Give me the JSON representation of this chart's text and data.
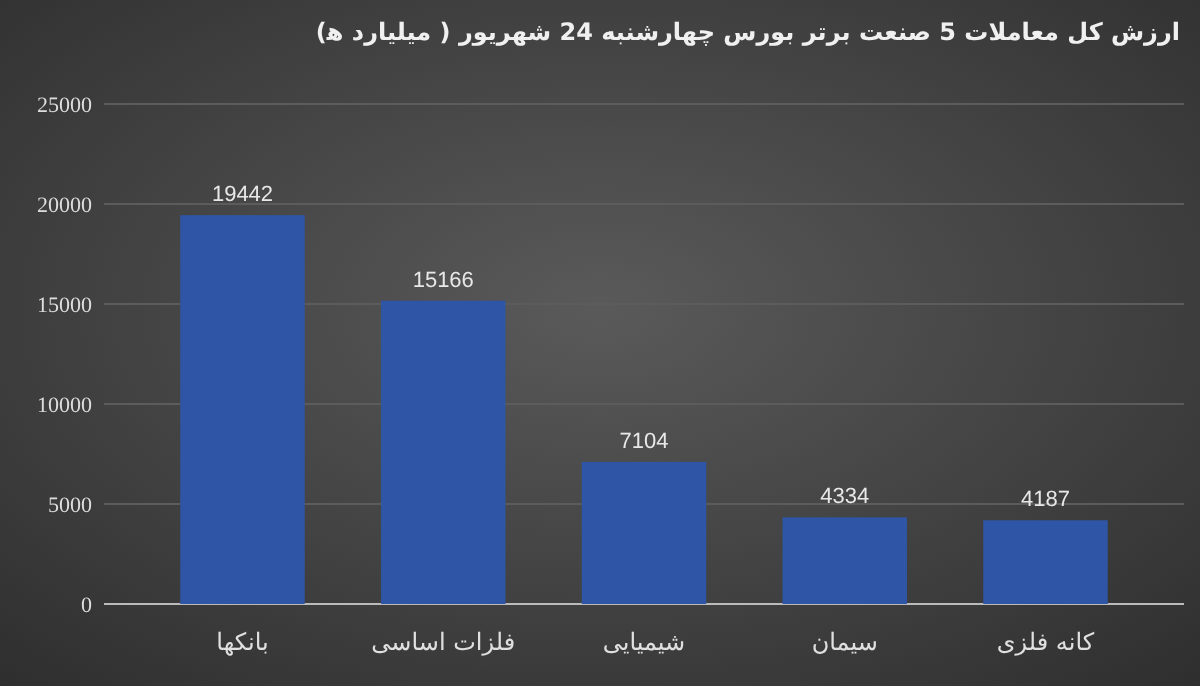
{
  "chart_data": {
    "type": "bar",
    "title": "ارزش کل معاملات 5 صنعت برتر بورس چهارشنبه 24 شهریور ( میلیارد ه‍)",
    "categories": [
      "بانکها",
      "فلزات اساسی",
      "شیمیایی",
      "سیمان",
      "کانه فلزی"
    ],
    "values": [
      19442,
      15166,
      7104,
      4334,
      4187
    ],
    "color": "#2f56a6",
    "ylim": [
      0,
      25000
    ],
    "yticks": [
      0,
      5000,
      10000,
      15000,
      20000,
      25000
    ],
    "grid": "y",
    "data_labels": true
  }
}
